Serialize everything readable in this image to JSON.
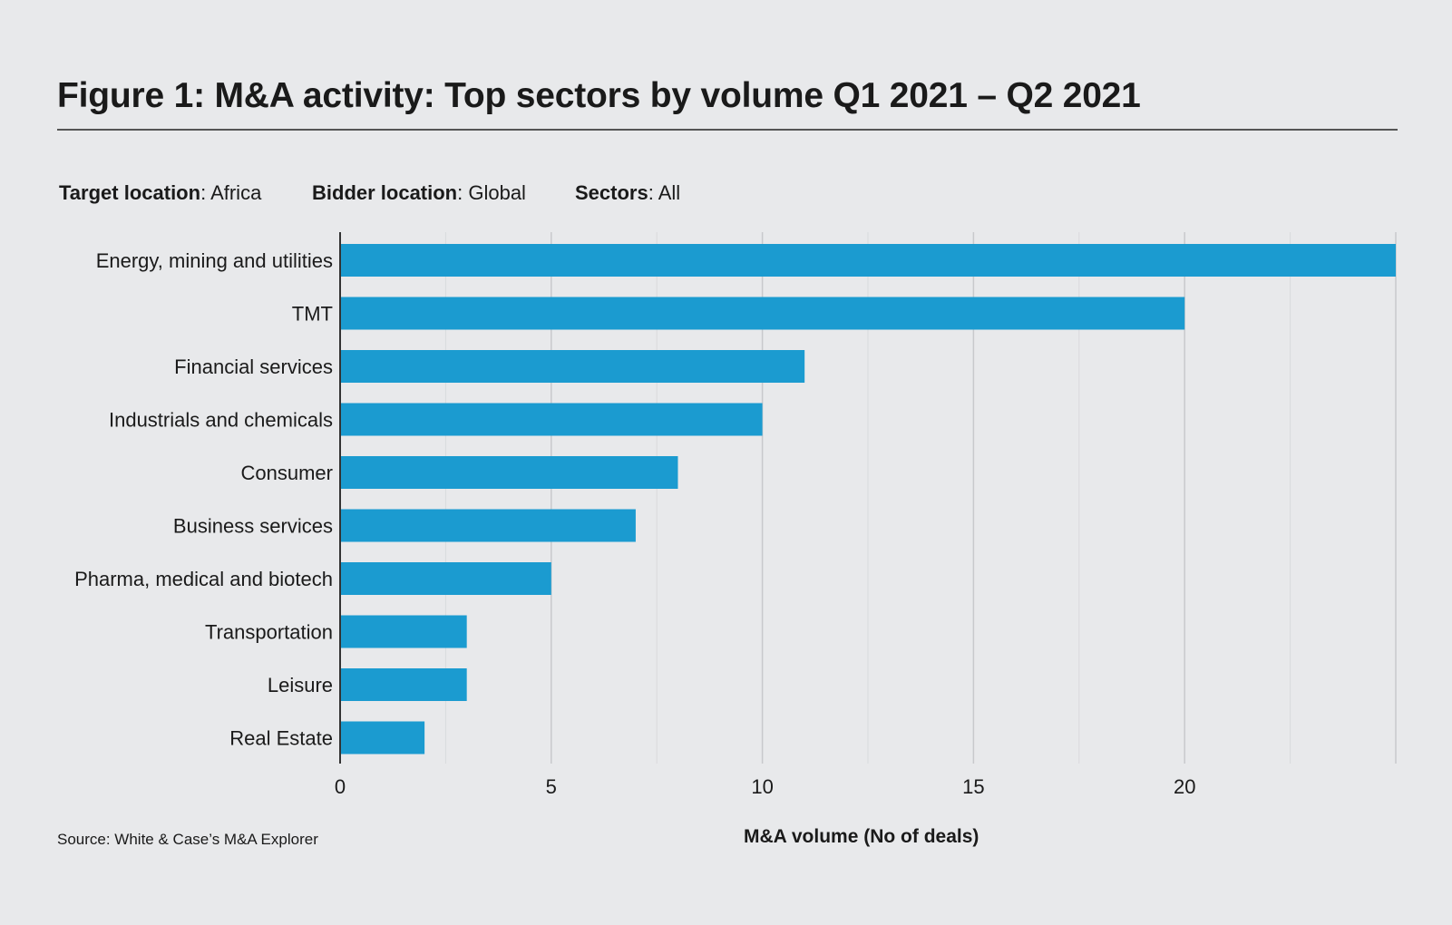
{
  "title": "Figure 1: M&A activity: Top sectors by volume Q1 2021 – Q2 2021",
  "filters": [
    {
      "key": "Target location",
      "value": ": Africa"
    },
    {
      "key": "Bidder location",
      "value": ": Global"
    },
    {
      "key": "Sectors",
      "value": ": All"
    }
  ],
  "source": "Source: White & Case’s M&A Explorer",
  "colors": {
    "bar": "#1b9bd0",
    "grid": "#c8c9cc",
    "axis": "#333333"
  },
  "chart_data": {
    "type": "bar",
    "orientation": "horizontal",
    "categories": [
      "Energy, mining and utilities",
      "TMT",
      "Financial services",
      "Industrials and chemicals",
      "Consumer",
      "Business services",
      "Pharma, medical and biotech",
      "Transportation",
      "Leisure",
      "Real Estate"
    ],
    "values": [
      25,
      20,
      11,
      10,
      8,
      7,
      5,
      3,
      3,
      2
    ],
    "xlabel": "M&A volume (No of deals)",
    "ylabel": "",
    "xlim": [
      0,
      25
    ],
    "xticks": [
      0,
      5,
      10,
      15,
      20
    ],
    "grid": true
  }
}
